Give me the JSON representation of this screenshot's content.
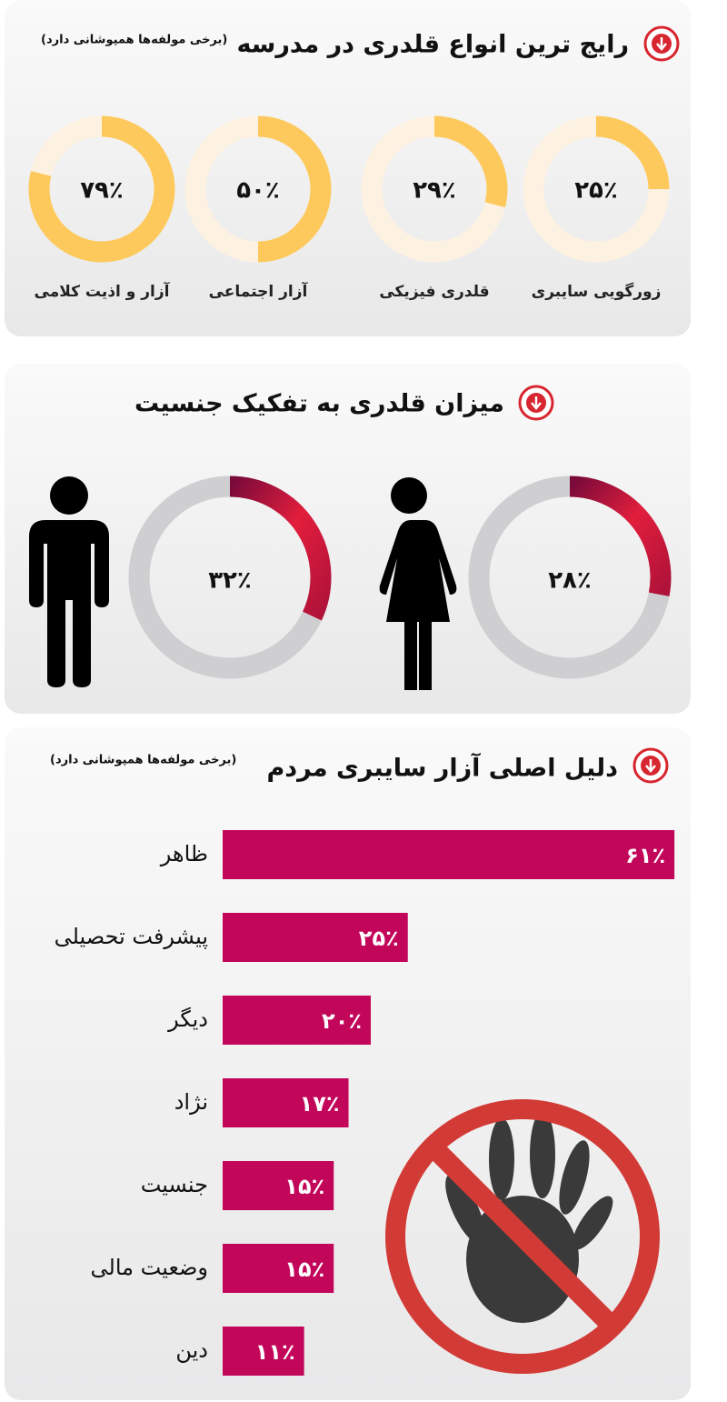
{
  "chart_data": [
    {
      "type": "donut",
      "title": "رایج ترین انواع قلدری در مدرسه",
      "subtitle": "(برخی مولفه‌ها همپوشانی دارد)",
      "categories": [
        "زورگویی سایبری",
        "قلدری فیزیکی",
        "آزار اجتماعی",
        "آزار و اذیت کلامی"
      ],
      "values": [
        25,
        29,
        50,
        79
      ],
      "value_labels": [
        "۲۵٪",
        "۲۹٪",
        "۵۰٪",
        "۷۹٪"
      ],
      "color": "#fdc95c"
    },
    {
      "type": "donut-gender",
      "title": "میزان قلدری به تفکیک جنسیت",
      "values": [
        28,
        32
      ],
      "value_labels": [
        "۲۸٪",
        "۳۲٪"
      ],
      "color": "#e21e3c"
    },
    {
      "type": "hbar",
      "title": "دلیل اصلی آزار سایبری مردم",
      "subtitle": "(برخی مولفه‌ها همپوشانی دارد)",
      "categories": [
        "ظاهر",
        "پیشرفت تحصیلی",
        "دیگر",
        "نژاد",
        "جنسیت",
        "وضعیت مالی",
        "دین"
      ],
      "values": [
        61,
        25,
        20,
        17,
        15,
        15,
        11
      ],
      "value_labels": [
        "۶۱٪",
        "۲۵٪",
        "۲۰٪",
        "۱۷٪",
        "۱۵٪",
        "۱۵٪",
        "۱۱٪"
      ],
      "color": "#c2075b"
    }
  ]
}
